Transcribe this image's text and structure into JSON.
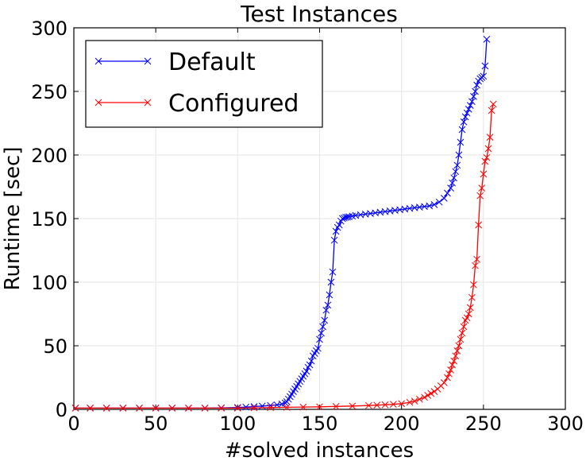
{
  "chart_data": {
    "type": "line",
    "title": "Test Instances",
    "xlabel": "#solved instances",
    "ylabel": "Runtime [sec]",
    "xlim": [
      0,
      300
    ],
    "ylim": [
      0,
      300
    ],
    "xticks": [
      "0",
      "50",
      "100",
      "150",
      "200",
      "250",
      "300"
    ],
    "yticks": [
      "0",
      "50",
      "100",
      "150",
      "200",
      "250",
      "300"
    ],
    "grid": true,
    "legend_position": "top-left",
    "series": [
      {
        "name": "Default",
        "color": "#0000ff",
        "marker": "x",
        "x": [
          1,
          10,
          20,
          30,
          40,
          50,
          60,
          70,
          80,
          90,
          100,
          105,
          110,
          115,
          120,
          124,
          127,
          129,
          130,
          131,
          132,
          133,
          134,
          135,
          136,
          137,
          138,
          139,
          140,
          141,
          142,
          143,
          144,
          145,
          146,
          147,
          148,
          149,
          150,
          151,
          152,
          153,
          154,
          155,
          156,
          157,
          158,
          159,
          160,
          161,
          162,
          163,
          164,
          165,
          166,
          167,
          168,
          170,
          172,
          175,
          178,
          181,
          184,
          187,
          190,
          193,
          196,
          199,
          202,
          205,
          208,
          211,
          214,
          217,
          220,
          223,
          226,
          228,
          230,
          231,
          232,
          233,
          234,
          235,
          236,
          237,
          238,
          239,
          240,
          241,
          242,
          243,
          244,
          245,
          246,
          247,
          248,
          249,
          250,
          251,
          252
        ],
        "y": [
          1,
          1,
          1,
          1,
          1,
          1,
          1,
          1,
          1,
          1.2,
          1.5,
          1.8,
          2.2,
          2.6,
          3,
          3.5,
          4.2,
          5,
          6,
          8,
          10,
          12,
          14,
          16,
          18,
          20,
          22,
          24,
          26,
          28,
          30,
          33,
          35,
          38,
          42,
          44,
          46,
          48,
          55,
          60,
          65,
          70,
          78,
          82,
          90,
          100,
          108,
          133,
          140,
          143,
          145,
          148,
          150,
          150.5,
          151,
          151.2,
          151.5,
          152,
          152.5,
          153,
          153.5,
          154,
          154.5,
          155,
          155.5,
          156,
          156.5,
          157,
          157.5,
          158,
          158.5,
          159,
          159.5,
          160,
          161,
          163,
          166,
          170,
          174,
          178,
          182,
          187,
          192,
          200,
          210,
          220,
          226,
          230,
          233,
          236,
          239,
          242,
          246,
          250,
          255,
          258,
          260,
          261,
          262,
          270,
          291
        ]
      },
      {
        "name": "Configured",
        "color": "#ff0000",
        "marker": "x",
        "x": [
          1,
          10,
          20,
          30,
          40,
          50,
          60,
          70,
          80,
          90,
          100,
          110,
          120,
          130,
          140,
          150,
          160,
          170,
          180,
          185,
          190,
          195,
          200,
          205,
          208,
          211,
          214,
          216,
          218,
          220,
          222,
          224,
          226,
          228,
          229,
          230,
          231,
          232,
          233,
          234,
          235,
          236,
          237,
          238,
          239,
          240,
          241,
          242,
          243,
          244,
          245,
          246,
          247,
          248,
          249,
          250,
          251,
          252,
          253,
          254,
          255,
          256
        ],
        "y": [
          1,
          1,
          1,
          1,
          1,
          1,
          1,
          1,
          1,
          1,
          1,
          1.2,
          1.4,
          1.6,
          1.8,
          2,
          2.3,
          2.6,
          3,
          3.3,
          3.6,
          4,
          4.5,
          5.5,
          6.5,
          8,
          9.5,
          11,
          12.5,
          14,
          16,
          18.5,
          21,
          25,
          28,
          31,
          35,
          38,
          42,
          46,
          50,
          55,
          60,
          65,
          70,
          72,
          75,
          80,
          88,
          98,
          113,
          118,
          145,
          168,
          174,
          185,
          195,
          198,
          205,
          214,
          235,
          240
        ]
      }
    ]
  }
}
